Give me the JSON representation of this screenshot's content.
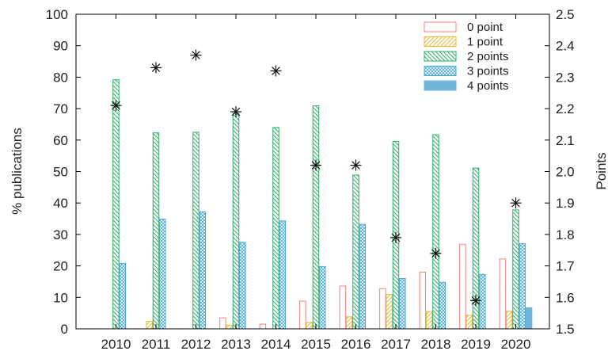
{
  "chart_data": {
    "type": "bar",
    "categories": [
      "2010",
      "2011",
      "2012",
      "2013",
      "2014",
      "2015",
      "2016",
      "2017",
      "2018",
      "2019",
      "2020"
    ],
    "series": [
      {
        "name": "0 point",
        "axis": "left",
        "pattern": "outline",
        "color": "#f08080",
        "values": [
          0,
          0,
          0,
          3.5,
          1.5,
          8.8,
          13.6,
          12.8,
          18.0,
          26.9,
          22.2
        ]
      },
      {
        "name": "1 point",
        "axis": "left",
        "pattern": "hatch-forward",
        "color": "#e8b83a",
        "values": [
          0,
          2.4,
          0,
          1.2,
          0,
          2.0,
          3.8,
          10.9,
          5.5,
          4.3,
          5.6
        ]
      },
      {
        "name": "2 points",
        "axis": "left",
        "pattern": "hatch-back",
        "color": "#2fae68",
        "values": [
          79.2,
          62.3,
          62.5,
          68.5,
          64.0,
          70.9,
          48.9,
          59.6,
          61.7,
          51.1,
          37.8
        ]
      },
      {
        "name": "3 points",
        "axis": "left",
        "pattern": "crosshatch",
        "color": "#4aa8d8",
        "values": [
          20.8,
          34.9,
          37.2,
          27.5,
          34.3,
          19.8,
          33.2,
          16.0,
          14.8,
          17.3,
          27.1
        ]
      },
      {
        "name": "4 points",
        "axis": "left",
        "pattern": "solid",
        "color": "#6fb7d9",
        "values": [
          0,
          0,
          0,
          0,
          0,
          0,
          0,
          0,
          0,
          0,
          6.7
        ]
      }
    ],
    "markers": {
      "axis": "right",
      "symbol": "asterisk",
      "values": [
        2.21,
        2.33,
        2.37,
        2.19,
        2.32,
        2.02,
        2.02,
        1.79,
        1.74,
        1.59,
        1.9
      ]
    },
    "ylabel": "% publications",
    "ylabel_right": "Points",
    "ylim": [
      0,
      100
    ],
    "ylim_right": [
      1.5,
      2.5
    ],
    "yticks": [
      "0",
      "10",
      "20",
      "30",
      "40",
      "50",
      "60",
      "70",
      "80",
      "90",
      "100"
    ],
    "yticks_right": [
      "1.5",
      "1.6",
      "1.7",
      "1.8",
      "1.9",
      "2.0",
      "2.1",
      "2.2",
      "2.3",
      "2.4",
      "2.5"
    ],
    "legend_position": "top-right",
    "grid": false
  }
}
